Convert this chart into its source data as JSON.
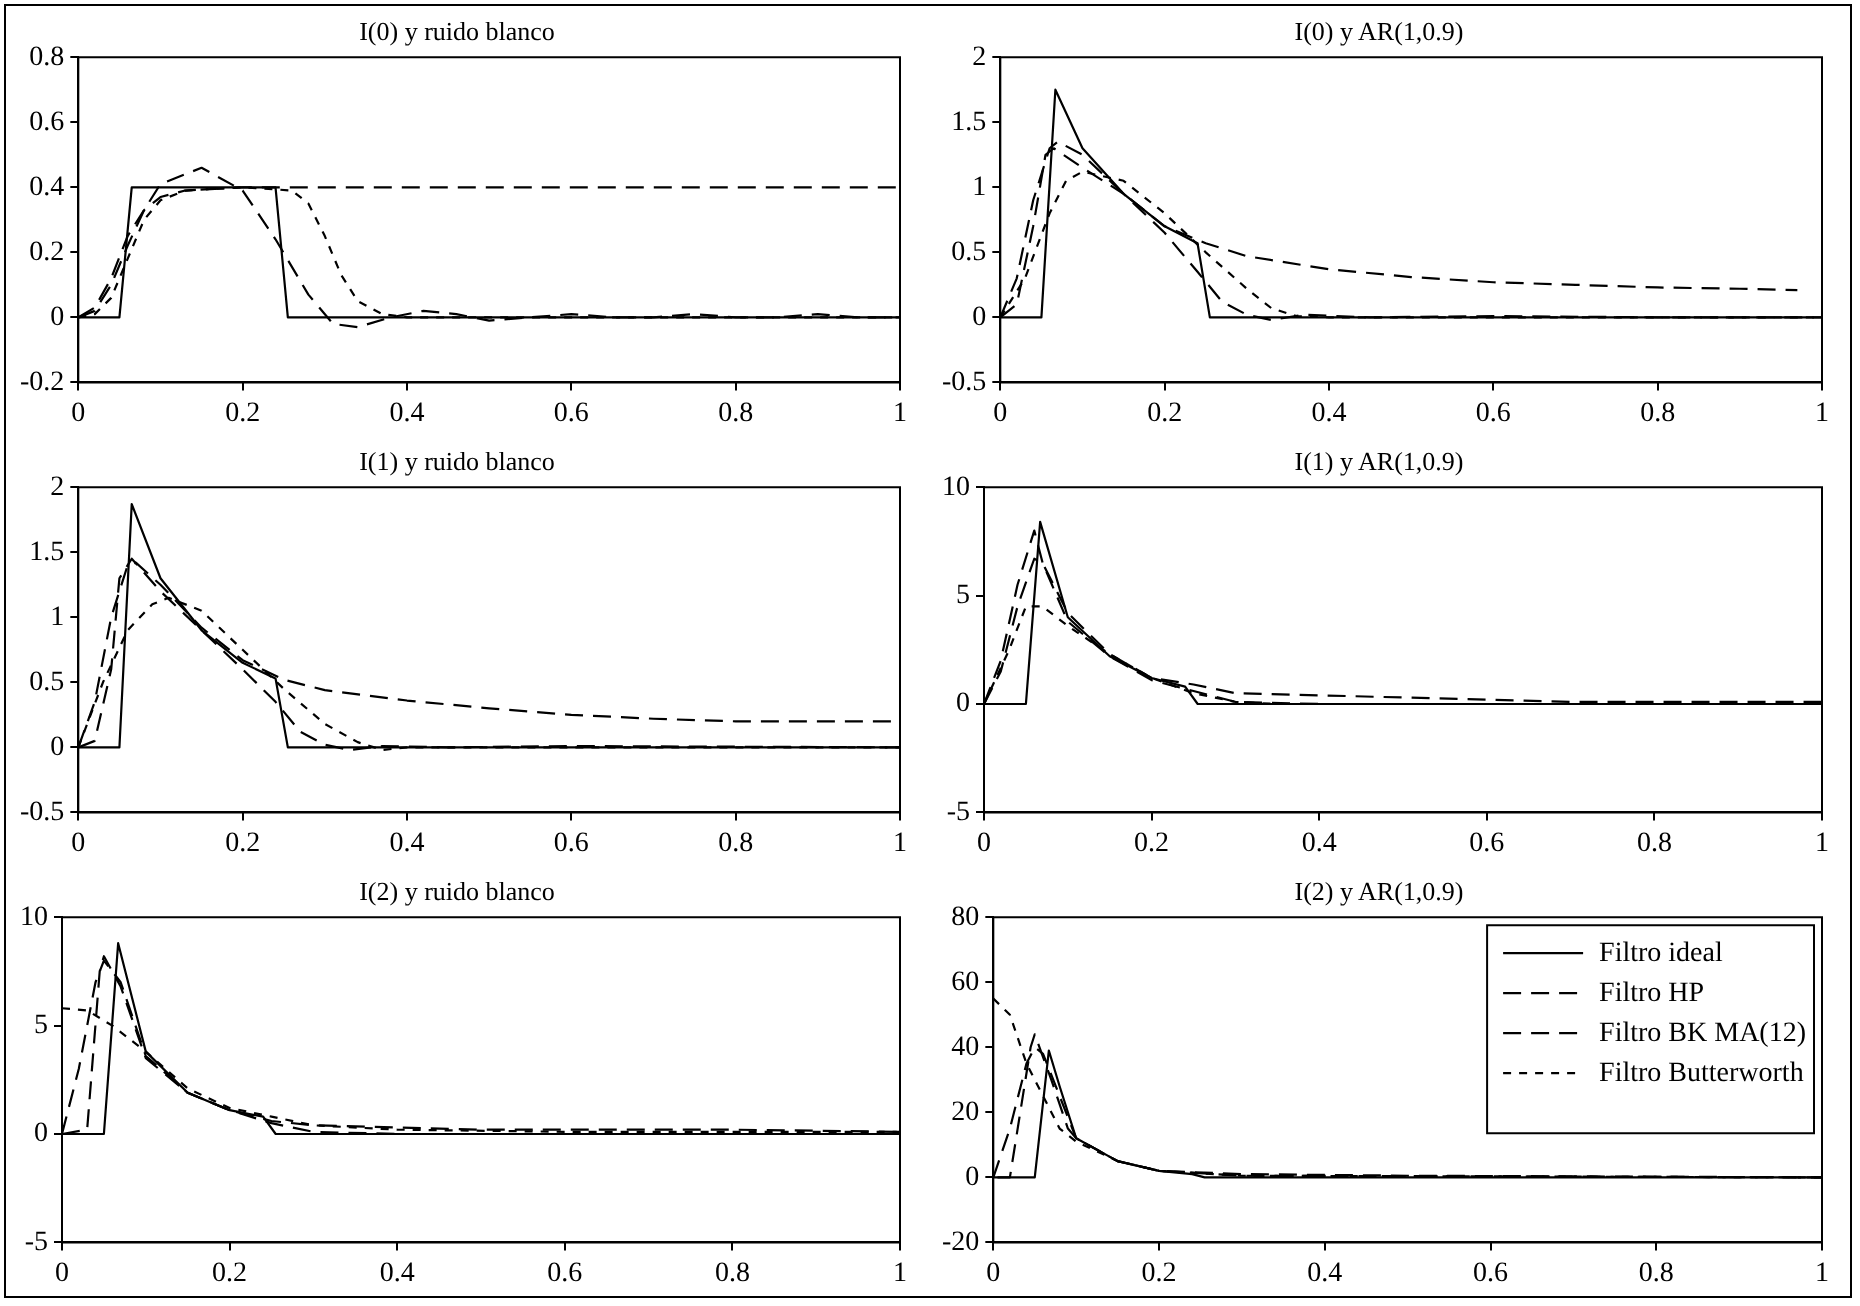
{
  "chart_data": [
    {
      "type": "line",
      "title": "I(0) y ruido blanco",
      "xlim": [
        0,
        1
      ],
      "xticks": [
        0,
        0.2,
        0.4,
        0.6,
        0.8,
        1
      ],
      "ylim": [
        -0.2,
        0.8
      ],
      "yticks": [
        -0.2,
        0,
        0.2,
        0.4,
        0.6,
        0.8
      ],
      "grid": false,
      "legend": false,
      "marker": "none",
      "series": [
        {
          "color": "#000000",
          "line_style": "solid",
          "x": [
            0,
            0.05,
            0.065,
            0.24,
            0.255,
            1
          ],
          "values": [
            0,
            0,
            0.4,
            0.4,
            0,
            0
          ]
        },
        {
          "color": "#000000",
          "line_style": "dashed",
          "x": [
            0,
            0.02,
            0.04,
            0.06,
            0.08,
            0.1,
            0.13,
            0.2,
            1
          ],
          "values": [
            0,
            0.03,
            0.12,
            0.25,
            0.33,
            0.37,
            0.39,
            0.4,
            0.4
          ]
        },
        {
          "color": "#000000",
          "line_style": "dashed",
          "x": [
            0,
            0.02,
            0.04,
            0.06,
            0.08,
            0.1,
            0.15,
            0.2,
            0.24,
            0.28,
            0.31,
            0.34,
            0.38,
            0.42,
            0.46,
            0.5,
            0.55,
            0.6,
            0.65,
            0.7,
            0.75,
            0.8,
            0.85,
            0.9,
            0.95,
            1
          ],
          "values": [
            0,
            0.02,
            0.1,
            0.22,
            0.33,
            0.41,
            0.46,
            0.39,
            0.24,
            0.07,
            -0.02,
            -0.03,
            0,
            0.02,
            0.01,
            -0.01,
            0,
            0.01,
            0,
            0,
            0.01,
            0,
            0,
            0.01,
            0,
            0
          ]
        },
        {
          "color": "#000000",
          "line_style": "dotted",
          "x": [
            0,
            0.02,
            0.04,
            0.06,
            0.08,
            0.1,
            0.13,
            0.2,
            0.26,
            0.28,
            0.3,
            0.32,
            0.34,
            0.37,
            0.4,
            1
          ],
          "values": [
            0,
            0.01,
            0.06,
            0.18,
            0.3,
            0.36,
            0.39,
            0.4,
            0.39,
            0.35,
            0.25,
            0.13,
            0.05,
            0.01,
            0,
            0
          ]
        }
      ]
    },
    {
      "type": "line",
      "title": "I(0) y AR(1,0.9)",
      "xlim": [
        0,
        1
      ],
      "xticks": [
        0,
        0.2,
        0.4,
        0.6,
        0.8,
        1
      ],
      "ylim": [
        -0.5,
        2
      ],
      "yticks": [
        -0.5,
        0,
        0.5,
        1,
        1.5,
        2
      ],
      "grid": false,
      "legend": false,
      "marker": "none",
      "series": [
        {
          "color": "#000000",
          "line_style": "solid",
          "x": [
            0,
            0.05,
            0.067,
            0.1,
            0.15,
            0.2,
            0.24,
            0.255,
            1
          ],
          "values": [
            0,
            0,
            1.75,
            1.3,
            0.95,
            0.7,
            0.57,
            0,
            0
          ]
        },
        {
          "color": "#000000",
          "line_style": "dashed",
          "x": [
            0,
            0.02,
            0.04,
            0.06,
            0.07,
            0.1,
            0.15,
            0.2,
            0.25,
            0.3,
            0.4,
            0.5,
            0.6,
            0.7,
            0.8,
            0.9,
            0.97
          ],
          "values": [
            0,
            0.3,
            0.9,
            1.3,
            1.35,
            1.25,
            0.95,
            0.7,
            0.57,
            0.47,
            0.37,
            0.31,
            0.27,
            0.25,
            0.23,
            0.22,
            0.21
          ]
        },
        {
          "color": "#000000",
          "line_style": "dashed",
          "x": [
            0,
            0.02,
            0.04,
            0.055,
            0.065,
            0.1,
            0.15,
            0.2,
            0.24,
            0.27,
            0.3,
            0.33,
            0.37,
            0.45,
            0.6,
            0.8,
            1
          ],
          "values": [
            0,
            0.1,
            0.7,
            1.25,
            1.3,
            1.15,
            0.95,
            0.65,
            0.35,
            0.12,
            0.02,
            -0.02,
            0.02,
            0,
            0.01,
            0,
            0
          ]
        },
        {
          "color": "#000000",
          "line_style": "dotted",
          "x": [
            0,
            0.03,
            0.06,
            0.08,
            0.1,
            0.15,
            0.2,
            0.25,
            0.3,
            0.33,
            0.36,
            0.4,
            1
          ],
          "values": [
            0,
            0.3,
            0.8,
            1.05,
            1.12,
            1.05,
            0.8,
            0.5,
            0.22,
            0.07,
            0.01,
            0,
            0
          ]
        }
      ]
    },
    {
      "type": "line",
      "title": "I(1) y ruido blanco",
      "xlim": [
        0,
        1
      ],
      "xticks": [
        0,
        0.2,
        0.4,
        0.6,
        0.8,
        1
      ],
      "ylim": [
        -0.5,
        2
      ],
      "yticks": [
        -0.5,
        0,
        0.5,
        1,
        1.5,
        2
      ],
      "grid": false,
      "legend": false,
      "marker": "none",
      "series": [
        {
          "color": "#000000",
          "line_style": "solid",
          "x": [
            0,
            0.05,
            0.065,
            0.1,
            0.15,
            0.2,
            0.24,
            0.255,
            1
          ],
          "values": [
            0,
            0,
            1.87,
            1.3,
            0.9,
            0.65,
            0.53,
            0,
            0
          ]
        },
        {
          "color": "#000000",
          "line_style": "dashed",
          "x": [
            0,
            0.02,
            0.04,
            0.06,
            0.07,
            0.1,
            0.15,
            0.2,
            0.25,
            0.3,
            0.4,
            0.5,
            0.6,
            0.7,
            0.8,
            1
          ],
          "values": [
            0,
            0.35,
            1,
            1.4,
            1.42,
            1.25,
            0.92,
            0.67,
            0.52,
            0.44,
            0.36,
            0.3,
            0.25,
            0.22,
            0.2,
            0.2
          ]
        },
        {
          "color": "#000000",
          "line_style": "dashed",
          "x": [
            0,
            0.02,
            0.04,
            0.05,
            0.065,
            0.1,
            0.15,
            0.2,
            0.24,
            0.27,
            0.3,
            0.33,
            0.37,
            0.45,
            0.6,
            1
          ],
          "values": [
            0,
            0.05,
            0.6,
            1.3,
            1.45,
            1.2,
            0.9,
            0.6,
            0.35,
            0.12,
            0.02,
            -0.02,
            0.01,
            0,
            0.01,
            0
          ]
        },
        {
          "color": "#000000",
          "line_style": "dotted",
          "x": [
            0,
            0.03,
            0.06,
            0.09,
            0.11,
            0.15,
            0.2,
            0.25,
            0.3,
            0.34,
            0.37,
            0.4,
            1
          ],
          "values": [
            0,
            0.5,
            0.9,
            1.1,
            1.15,
            1.05,
            0.75,
            0.45,
            0.18,
            0.04,
            -0.02,
            0,
            0
          ]
        }
      ]
    },
    {
      "type": "line",
      "title": "I(1) y AR(1,0.9)",
      "xlim": [
        0,
        1
      ],
      "xticks": [
        0,
        0.2,
        0.4,
        0.6,
        0.8,
        1
      ],
      "ylim": [
        -5,
        10
      ],
      "yticks": [
        -5,
        0,
        5,
        10
      ],
      "grid": false,
      "legend": false,
      "marker": "none",
      "series": [
        {
          "color": "#000000",
          "line_style": "solid",
          "x": [
            0,
            0.05,
            0.067,
            0.1,
            0.15,
            0.2,
            0.24,
            0.255,
            1
          ],
          "values": [
            0,
            0,
            8.4,
            4,
            2.2,
            1.2,
            0.8,
            0,
            0
          ]
        },
        {
          "color": "#000000",
          "line_style": "dashed",
          "x": [
            0,
            0.02,
            0.04,
            0.06,
            0.07,
            0.1,
            0.15,
            0.2,
            0.25,
            0.3,
            0.4,
            0.5,
            0.6,
            0.7,
            0.8,
            1
          ],
          "values": [
            0,
            1.5,
            4.5,
            6.7,
            6.5,
            4.2,
            2.3,
            1.2,
            0.9,
            0.5,
            0.4,
            0.3,
            0.2,
            0.1,
            0.1,
            0.1
          ]
        },
        {
          "color": "#000000",
          "line_style": "dashed",
          "x": [
            0,
            0.02,
            0.04,
            0.06,
            0.07,
            0.1,
            0.15,
            0.2,
            0.25,
            0.3,
            0.4,
            1
          ],
          "values": [
            0,
            2,
            5.5,
            8,
            6.5,
            3.8,
            2.2,
            1.1,
            0.6,
            0.1,
            0,
            0
          ]
        },
        {
          "color": "#000000",
          "line_style": "dotted",
          "x": [
            0,
            0.03,
            0.05,
            0.07,
            0.1,
            0.15,
            0.2,
            0.25,
            0.3,
            0.35,
            1
          ],
          "values": [
            0,
            2.5,
            4.5,
            4.5,
            3.6,
            2.3,
            1.2,
            0.5,
            0.1,
            0,
            0
          ]
        }
      ]
    },
    {
      "type": "line",
      "title": "I(2) y ruido blanco",
      "xlim": [
        0,
        1
      ],
      "xticks": [
        0,
        0.2,
        0.4,
        0.6,
        0.8,
        1
      ],
      "ylim": [
        -5,
        10
      ],
      "yticks": [
        -5,
        0,
        5,
        10
      ],
      "grid": false,
      "legend": false,
      "marker": "none",
      "series": [
        {
          "color": "#000000",
          "line_style": "solid",
          "x": [
            0,
            0.05,
            0.067,
            0.1,
            0.15,
            0.2,
            0.24,
            0.255,
            1
          ],
          "values": [
            0,
            0,
            8.8,
            3.8,
            1.9,
            1.1,
            0.8,
            0,
            0
          ]
        },
        {
          "color": "#000000",
          "line_style": "dashed",
          "x": [
            0,
            0.02,
            0.04,
            0.05,
            0.07,
            0.1,
            0.15,
            0.2,
            0.25,
            0.3,
            0.4,
            0.5,
            0.6,
            0.8,
            1
          ],
          "values": [
            0,
            3,
            7,
            8,
            7,
            3.6,
            1.9,
            1.1,
            0.6,
            0.4,
            0.3,
            0.2,
            0.2,
            0.2,
            0.1
          ]
        },
        {
          "color": "#000000",
          "line_style": "dashed",
          "x": [
            0,
            0.03,
            0.045,
            0.05,
            0.07,
            0.1,
            0.15,
            0.2,
            0.25,
            0.3,
            0.4,
            1
          ],
          "values": [
            0,
            0.2,
            7.5,
            8.2,
            6.8,
            3.5,
            1.9,
            1.1,
            0.5,
            0.1,
            0,
            0
          ]
        },
        {
          "color": "#000000",
          "line_style": "dotted",
          "x": [
            0,
            0.03,
            0.06,
            0.1,
            0.15,
            0.2,
            0.25,
            0.3,
            0.4,
            0.6,
            1
          ],
          "values": [
            5.8,
            5.7,
            5,
            3.8,
            2.1,
            1.2,
            0.8,
            0.4,
            0.2,
            0.1,
            0.1
          ]
        }
      ]
    },
    {
      "type": "line",
      "title": "I(2) y AR(1,0.9)",
      "xlim": [
        0,
        1
      ],
      "xticks": [
        0,
        0.2,
        0.4,
        0.6,
        0.8,
        1
      ],
      "ylim": [
        -20,
        80
      ],
      "yticks": [
        -20,
        0,
        20,
        40,
        60,
        80
      ],
      "grid": false,
      "legend": "top right",
      "marker": "none",
      "series": [
        {
          "name": "Filtro ideal",
          "color": "#000000",
          "line_style": "solid",
          "x": [
            0,
            0.05,
            0.067,
            0.08,
            0.1,
            0.15,
            0.2,
            0.24,
            0.255,
            1
          ],
          "values": [
            0,
            0,
            39,
            28,
            12,
            5,
            2,
            1,
            0,
            0
          ]
        },
        {
          "name": "Filtro HP",
          "color": "#000000",
          "line_style": "dashed",
          "x": [
            0,
            0.02,
            0.04,
            0.05,
            0.06,
            0.08,
            0.1,
            0.15,
            0.2,
            0.3,
            0.5,
            1
          ],
          "values": [
            0,
            15,
            35,
            40,
            38,
            25,
            12,
            5,
            2,
            1,
            0.5,
            0
          ]
        },
        {
          "name": "Filtro BK MA(12)",
          "color": "#000000",
          "line_style": "dashed",
          "x": [
            0.005,
            0.02,
            0.045,
            0.05,
            0.07,
            0.09,
            0.1,
            0.15,
            0.2,
            0.3,
            1
          ],
          "values": [
            0,
            0,
            40,
            44,
            30,
            15,
            12,
            5,
            2,
            0.5,
            0
          ]
        },
        {
          "name": "Filtro Butterworth",
          "color": "#000000",
          "line_style": "dotted",
          "x": [
            0,
            0.02,
            0.04,
            0.06,
            0.08,
            0.1,
            0.15,
            0.2,
            0.3,
            1
          ],
          "values": [
            55,
            50,
            35,
            25,
            15,
            11,
            5,
            2,
            0.5,
            0
          ]
        }
      ]
    }
  ]
}
